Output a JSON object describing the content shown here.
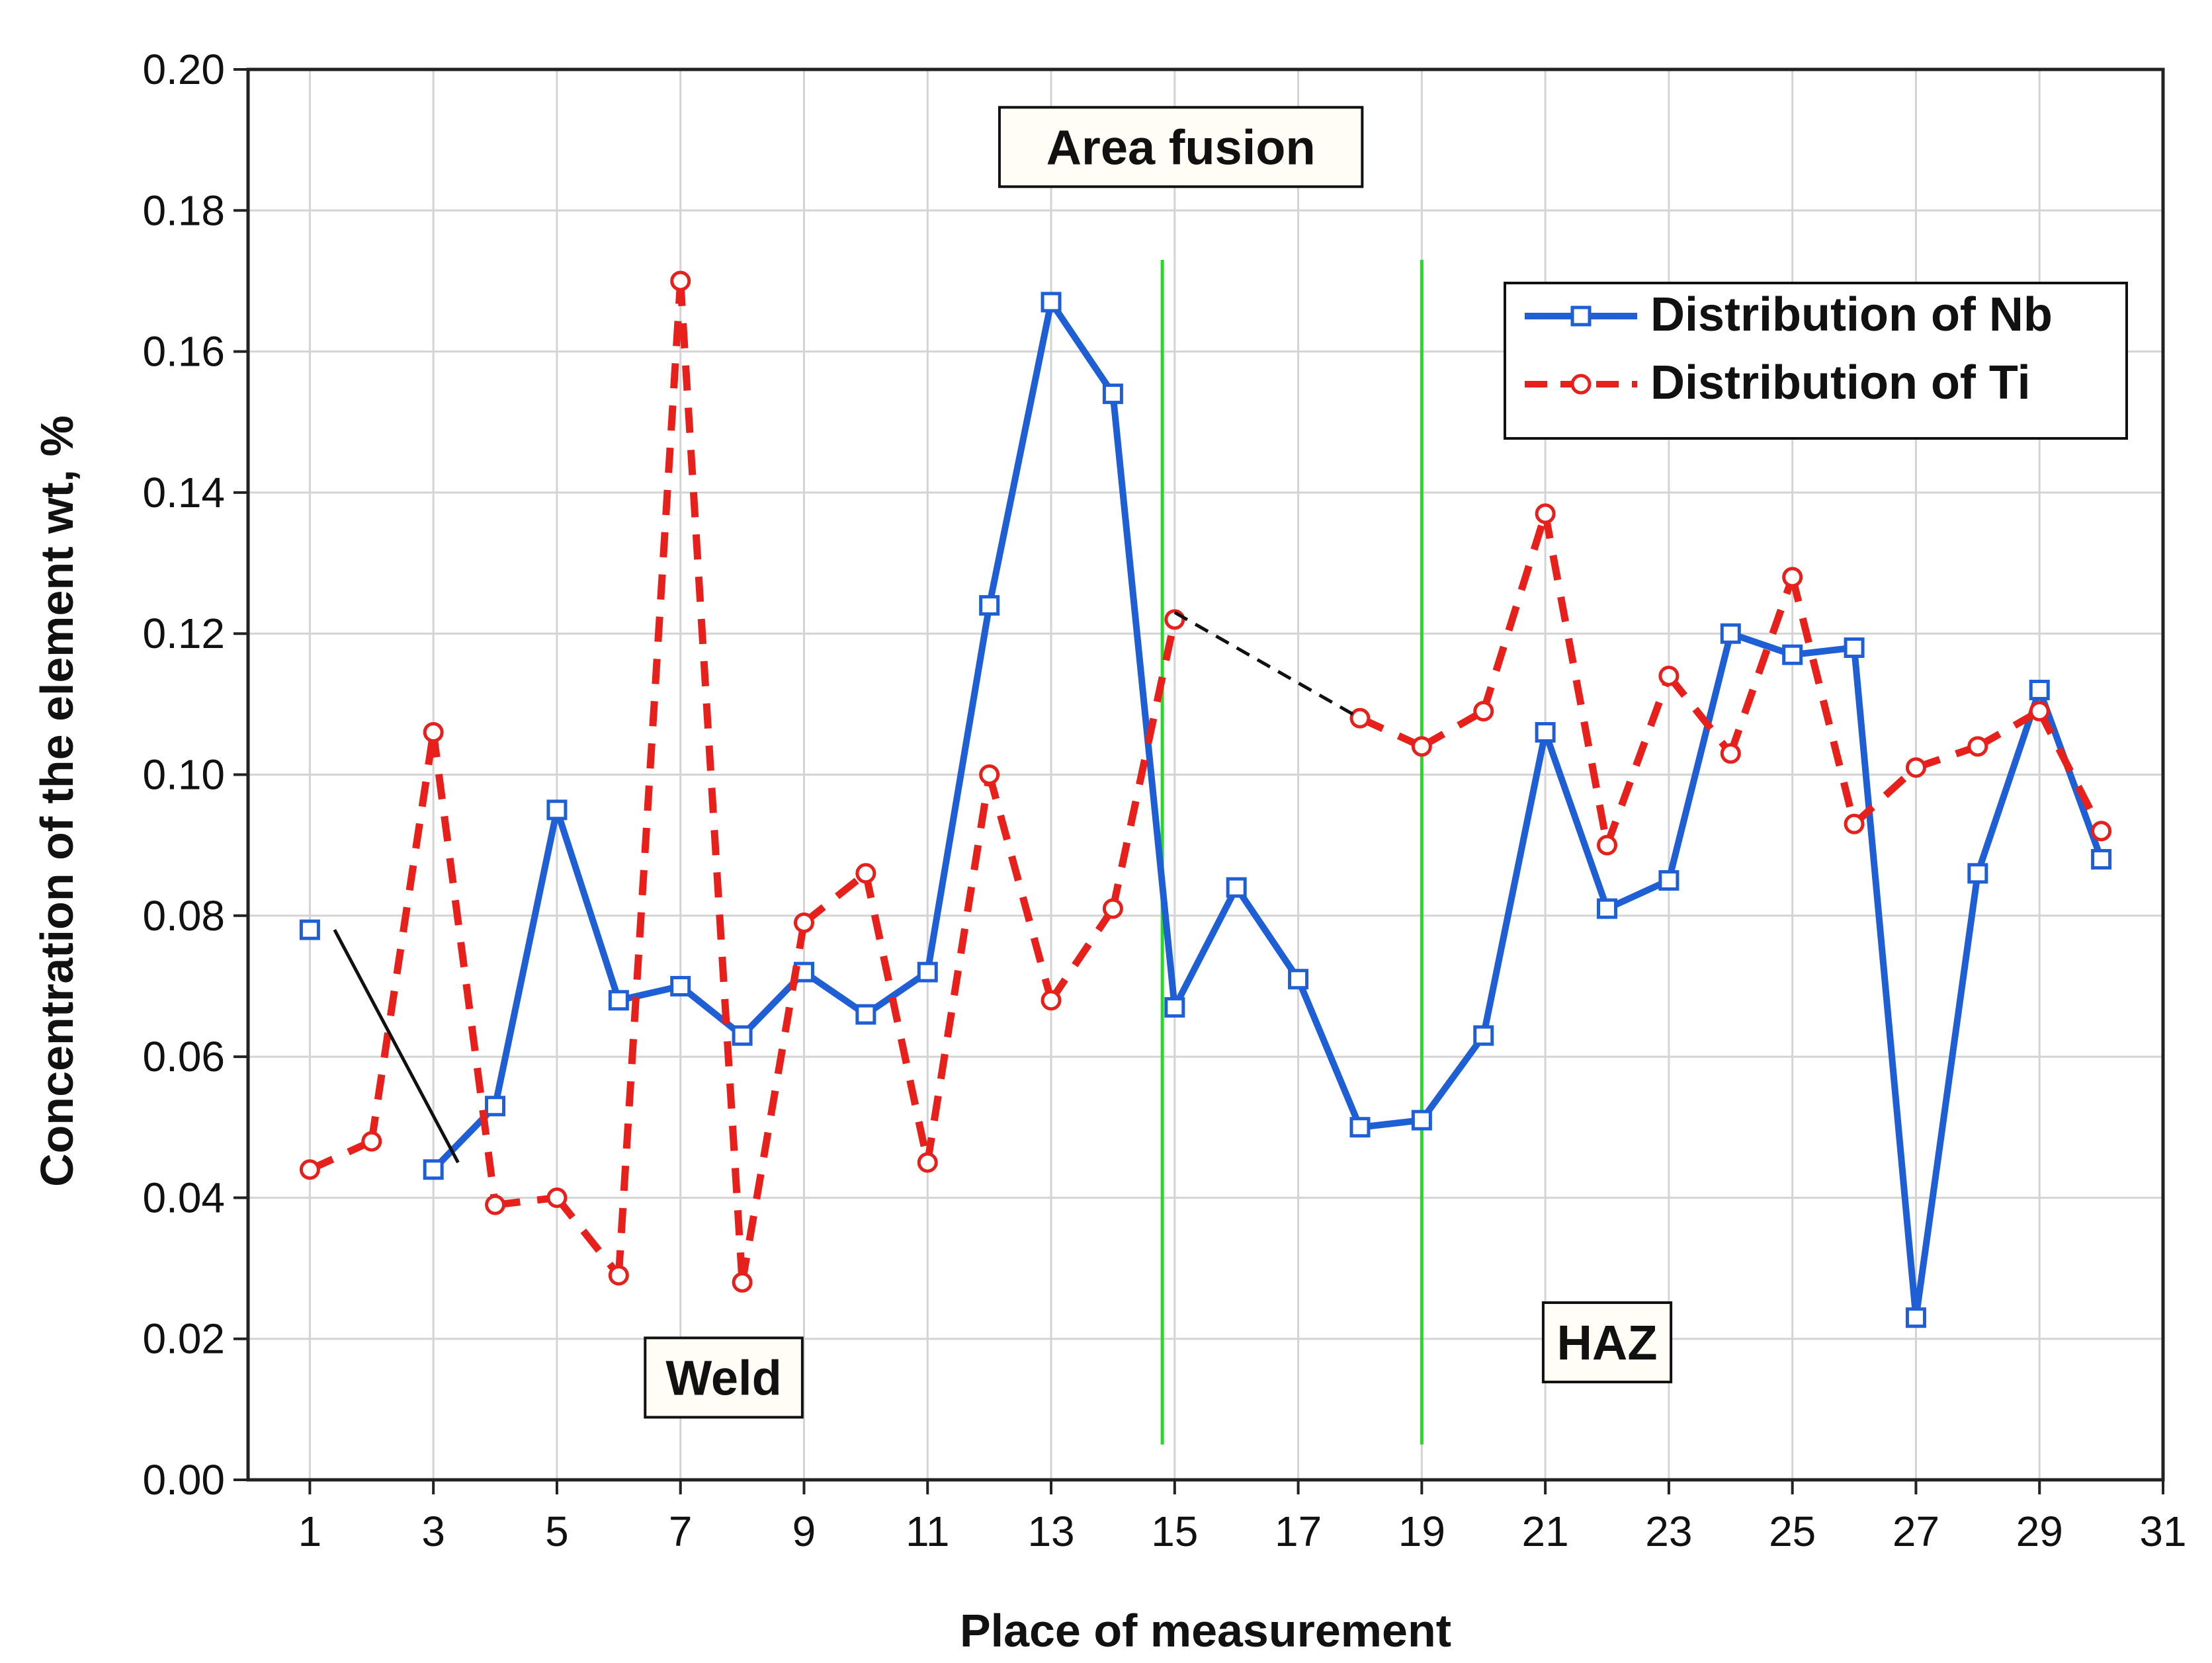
{
  "chart_data": {
    "type": "line",
    "title": "",
    "xlabel": "Place of measurement",
    "ylabel": "Concentration of the element wt, %",
    "xlim": [
      0,
      31
    ],
    "ylim": [
      0,
      0.2
    ],
    "x_ticks": [
      "1",
      "3",
      "5",
      "7",
      "9",
      "11",
      "13",
      "15",
      "17",
      "19",
      "21",
      "23",
      "25",
      "27",
      "29",
      "31"
    ],
    "y_ticks": [
      "0.00",
      "0.02",
      "0.04",
      "0.06",
      "0.08",
      "0.10",
      "0.12",
      "0.14",
      "0.16",
      "0.18",
      "0.20"
    ],
    "grid": true,
    "legend_position": "top-right",
    "series": [
      {
        "name": "Distribution of Nb",
        "color": "#1f5fd6",
        "marker": "square",
        "line_style": "solid",
        "points": [
          [
            1,
            0.078
          ],
          [
            3,
            0.044
          ],
          [
            4,
            0.053
          ],
          [
            5,
            0.095
          ],
          [
            6,
            0.068
          ],
          [
            7,
            0.07
          ],
          [
            8,
            0.063
          ],
          [
            9,
            0.072
          ],
          [
            10,
            0.066
          ],
          [
            11,
            0.072
          ],
          [
            12,
            0.124
          ],
          [
            13,
            0.167
          ],
          [
            14,
            0.154
          ],
          [
            15,
            0.067
          ],
          [
            16,
            0.084
          ],
          [
            17,
            0.071
          ],
          [
            18,
            0.05
          ],
          [
            19,
            0.051
          ],
          [
            20,
            0.063
          ],
          [
            21,
            0.106
          ],
          [
            22,
            0.081
          ],
          [
            23,
            0.085
          ],
          [
            24,
            0.12
          ],
          [
            25,
            0.117
          ],
          [
            26,
            0.118
          ],
          [
            27,
            0.023
          ],
          [
            28,
            0.086
          ],
          [
            29,
            0.112
          ],
          [
            30,
            0.088
          ]
        ],
        "gaps_after_x": [
          1
        ]
      },
      {
        "name": "Distribution of Ti",
        "color": "#e8201c",
        "marker": "circle",
        "line_style": "dashed",
        "points": [
          [
            1,
            0.044
          ],
          [
            2,
            0.048
          ],
          [
            3,
            0.106
          ],
          [
            4,
            0.039
          ],
          [
            5,
            0.04
          ],
          [
            6,
            0.029
          ],
          [
            7,
            0.17
          ],
          [
            8,
            0.028
          ],
          [
            9,
            0.079
          ],
          [
            10,
            0.086
          ],
          [
            11,
            0.045
          ],
          [
            12,
            0.1
          ],
          [
            13,
            0.068
          ],
          [
            14,
            0.081
          ],
          [
            15,
            0.122
          ],
          [
            18,
            0.108
          ],
          [
            19,
            0.104
          ],
          [
            20,
            0.109
          ],
          [
            21,
            0.137
          ],
          [
            22,
            0.09
          ],
          [
            23,
            0.114
          ],
          [
            24,
            0.103
          ],
          [
            25,
            0.128
          ],
          [
            26,
            0.093
          ],
          [
            27,
            0.101
          ],
          [
            28,
            0.104
          ],
          [
            29,
            0.109
          ],
          [
            30,
            0.092
          ]
        ],
        "gaps_after_x": [
          15
        ]
      }
    ],
    "connectors": [
      {
        "color": "#111111",
        "style": "solid",
        "from": [
          1.4,
          0.078
        ],
        "to": [
          3.4,
          0.045
        ]
      },
      {
        "color": "#111111",
        "style": "dashed",
        "from": [
          15,
          0.123
        ],
        "to": [
          18,
          0.108
        ]
      }
    ],
    "vertical_lines": [
      {
        "x": 14.8,
        "color": "#22dd22",
        "y_from": 0.005,
        "y_to": 0.173
      },
      {
        "x": 19.0,
        "color": "#22dd22",
        "y_from": 0.005,
        "y_to": 0.173
      }
    ],
    "annotations": [
      {
        "id": "area-fusion",
        "text": "Area fusion",
        "x": 15.1,
        "y": 0.189
      },
      {
        "id": "weld",
        "text": "Weld",
        "x": 7.7,
        "y": 0.0145
      },
      {
        "id": "haz",
        "text": "HAZ",
        "x": 22.0,
        "y": 0.0195
      }
    ]
  }
}
